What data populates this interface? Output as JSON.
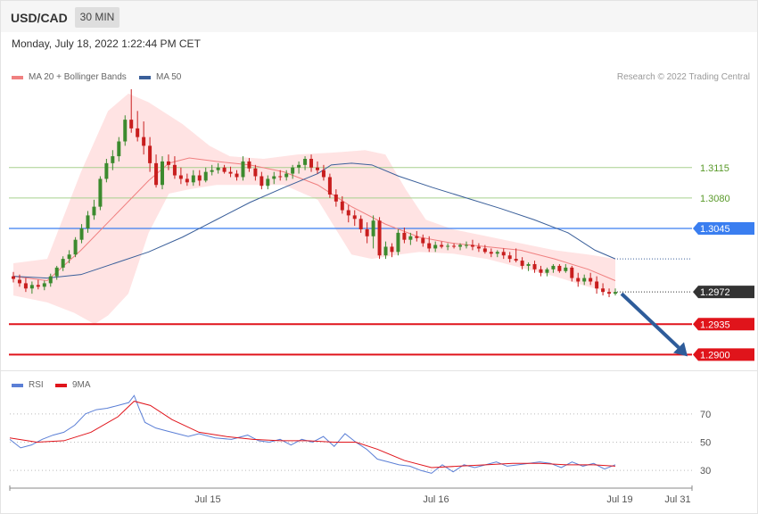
{
  "header": {
    "symbol": "USD/CAD",
    "timeframe": "30 MIN"
  },
  "date": "Monday, July 18, 2022 1:22:44 PM CET",
  "legend": {
    "ma20_label": "MA 20 + Bollinger Bands",
    "ma50_label": "MA 50",
    "copyright": "Research © 2022 Trading Central",
    "rsi_label": "RSI",
    "rsi_ma_label": "9MA"
  },
  "colors": {
    "ma20": "#f08080",
    "ma50": "#3a5f9a",
    "band_fill": "#ffe3e3",
    "bull": "#3c8a2e",
    "bear": "#c81e1e",
    "green_level": "#a8d08d",
    "blue_level": "#3a7ef0",
    "red_level": "#e0141b",
    "last_price": "#333333",
    "rsi": "#5b7fd6",
    "rsi_ma": "#e0141b",
    "arrow": "#2e5c9a"
  },
  "chart_data": {
    "type": "candlestick",
    "ylim": [
      1.2885,
      1.3205
    ],
    "last_price": 1.2972,
    "levels": [
      {
        "label": "1.3115",
        "value": 1.3115,
        "kind": "green"
      },
      {
        "label": "1.3080",
        "value": 1.308,
        "kind": "green"
      },
      {
        "label": "1.3045",
        "value": 1.3045,
        "kind": "blue"
      },
      {
        "label": "1.2972",
        "value": 1.2972,
        "kind": "last"
      },
      {
        "label": "1.2935",
        "value": 1.2935,
        "kind": "red"
      },
      {
        "label": "1.2900",
        "value": 1.29,
        "kind": "red"
      }
    ],
    "x_ticks": [
      "Jul 15",
      "Jul 16",
      "Jul 19",
      "Jul 31"
    ],
    "candles": [
      [
        1.299,
        1.2995,
        1.2983,
        1.2987
      ],
      [
        1.2986,
        1.2992,
        1.2978,
        1.2982
      ],
      [
        1.2982,
        1.2988,
        1.2972,
        1.2976
      ],
      [
        1.2976,
        1.2984,
        1.297,
        1.298
      ],
      [
        1.298,
        1.2986,
        1.2975,
        1.2978
      ],
      [
        1.2978,
        1.2985,
        1.2974,
        1.2982
      ],
      [
        1.2982,
        1.2993,
        1.2978,
        1.299
      ],
      [
        1.299,
        1.3002,
        1.2986,
        1.3
      ],
      [
        1.3,
        1.3013,
        1.2996,
        1.301
      ],
      [
        1.301,
        1.302,
        1.3005,
        1.3015
      ],
      [
        1.3015,
        1.3035,
        1.3012,
        1.3032
      ],
      [
        1.3032,
        1.305,
        1.3028,
        1.3045
      ],
      [
        1.3045,
        1.3065,
        1.304,
        1.306
      ],
      [
        1.306,
        1.3078,
        1.3055,
        1.307
      ],
      [
        1.307,
        1.3105,
        1.3066,
        1.3102
      ],
      [
        1.3102,
        1.3125,
        1.3098,
        1.312
      ],
      [
        1.312,
        1.3135,
        1.3112,
        1.3128
      ],
      [
        1.3128,
        1.315,
        1.3122,
        1.3145
      ],
      [
        1.3145,
        1.3175,
        1.314,
        1.317
      ],
      [
        1.317,
        1.3205,
        1.3155,
        1.316
      ],
      [
        1.316,
        1.318,
        1.3145,
        1.315
      ],
      [
        1.315,
        1.3168,
        1.313,
        1.314
      ],
      [
        1.314,
        1.315,
        1.311,
        1.312
      ],
      [
        1.312,
        1.313,
        1.3092,
        1.3095
      ],
      [
        1.3095,
        1.3128,
        1.309,
        1.3122
      ],
      [
        1.3122,
        1.313,
        1.3112,
        1.3118
      ],
      [
        1.3118,
        1.3128,
        1.3102,
        1.3106
      ],
      [
        1.3106,
        1.3115,
        1.3096,
        1.3102
      ],
      [
        1.3102,
        1.3108,
        1.3094,
        1.3098
      ],
      [
        1.3098,
        1.3112,
        1.3094,
        1.3106
      ],
      [
        1.3106,
        1.3112,
        1.3094,
        1.31
      ],
      [
        1.31,
        1.3115,
        1.3098,
        1.311
      ],
      [
        1.311,
        1.3118,
        1.3106,
        1.3112
      ],
      [
        1.3112,
        1.312,
        1.3108,
        1.3115
      ],
      [
        1.3115,
        1.3118,
        1.3108,
        1.311
      ],
      [
        1.311,
        1.3116,
        1.3104,
        1.3108
      ],
      [
        1.3108,
        1.3112,
        1.31,
        1.3104
      ],
      [
        1.3104,
        1.3128,
        1.31,
        1.3122
      ],
      [
        1.3122,
        1.3126,
        1.311,
        1.3114
      ],
      [
        1.3114,
        1.3118,
        1.31,
        1.3105
      ],
      [
        1.3105,
        1.311,
        1.309,
        1.3094
      ],
      [
        1.3094,
        1.3106,
        1.309,
        1.3102
      ],
      [
        1.3102,
        1.311,
        1.3096,
        1.3105
      ],
      [
        1.3105,
        1.3112,
        1.31,
        1.3104
      ],
      [
        1.3104,
        1.3112,
        1.31,
        1.3108
      ],
      [
        1.3108,
        1.3118,
        1.3102,
        1.3115
      ],
      [
        1.3115,
        1.3122,
        1.3108,
        1.3118
      ],
      [
        1.3118,
        1.3128,
        1.3112,
        1.3125
      ],
      [
        1.3125,
        1.313,
        1.311,
        1.3115
      ],
      [
        1.3115,
        1.3122,
        1.3108,
        1.3112
      ],
      [
        1.3112,
        1.3118,
        1.31,
        1.3104
      ],
      [
        1.3104,
        1.3108,
        1.308,
        1.3084
      ],
      [
        1.3084,
        1.309,
        1.307,
        1.3076
      ],
      [
        1.3076,
        1.3082,
        1.3062,
        1.3066
      ],
      [
        1.3066,
        1.3072,
        1.3052,
        1.306
      ],
      [
        1.306,
        1.3066,
        1.3048,
        1.3056
      ],
      [
        1.3056,
        1.306,
        1.304,
        1.3044
      ],
      [
        1.3044,
        1.3052,
        1.3028,
        1.3036
      ],
      [
        1.3036,
        1.306,
        1.3022,
        1.3054
      ],
      [
        1.3054,
        1.3058,
        1.301,
        1.3014
      ],
      [
        1.3014,
        1.303,
        1.301,
        1.3024
      ],
      [
        1.3024,
        1.3028,
        1.3012,
        1.3018
      ],
      [
        1.3018,
        1.3044,
        1.3014,
        1.304
      ],
      [
        1.304,
        1.3046,
        1.3028,
        1.3032
      ],
      [
        1.3032,
        1.304,
        1.3026,
        1.3036
      ],
      [
        1.3036,
        1.3042,
        1.303,
        1.3034
      ],
      [
        1.3034,
        1.3038,
        1.3024,
        1.3028
      ],
      [
        1.3028,
        1.3036,
        1.3018,
        1.3022
      ],
      [
        1.3022,
        1.303,
        1.3018,
        1.3026
      ],
      [
        1.3026,
        1.303,
        1.3022,
        1.3024
      ],
      [
        1.3024,
        1.3028,
        1.302,
        1.3025
      ],
      [
        1.3025,
        1.3028,
        1.3022,
        1.3024
      ],
      [
        1.3024,
        1.3028,
        1.302,
        1.3026
      ],
      [
        1.3026,
        1.303,
        1.3022,
        1.3026
      ],
      [
        1.3026,
        1.3032,
        1.302,
        1.3024
      ],
      [
        1.3024,
        1.3028,
        1.3018,
        1.3022
      ],
      [
        1.3022,
        1.3026,
        1.3016,
        1.3018
      ],
      [
        1.3018,
        1.3022,
        1.3012,
        1.3016
      ],
      [
        1.3016,
        1.302,
        1.3012,
        1.3018
      ],
      [
        1.3018,
        1.3022,
        1.301,
        1.3014
      ],
      [
        1.3014,
        1.3018,
        1.3006,
        1.301
      ],
      [
        1.301,
        1.3022,
        1.3006,
        1.3008
      ],
      [
        1.3008,
        1.3012,
        1.2998,
        1.3002
      ],
      [
        1.3002,
        1.3006,
        1.2996,
        1.3004
      ],
      [
        1.3004,
        1.3008,
        1.2994,
        1.2998
      ],
      [
        1.2998,
        1.3002,
        1.299,
        1.2994
      ],
      [
        1.2994,
        1.3,
        1.299,
        1.2998
      ],
      [
        1.2998,
        1.3004,
        1.2994,
        1.3002
      ],
      [
        1.3002,
        1.3004,
        1.2994,
        1.2996
      ],
      [
        1.2996,
        1.3004,
        1.2994,
        1.3
      ],
      [
        1.3,
        1.3002,
        1.2984,
        1.2988
      ],
      [
        1.2988,
        1.2994,
        1.2978,
        1.2984
      ],
      [
        1.2984,
        1.2992,
        1.298,
        1.2988
      ],
      [
        1.2988,
        1.2994,
        1.298,
        1.2984
      ],
      [
        1.2984,
        1.299,
        1.297,
        1.2976
      ],
      [
        1.2976,
        1.2982,
        1.2968,
        1.2972
      ],
      [
        1.2972,
        1.2976,
        1.2966,
        1.297
      ],
      [
        1.297,
        1.2976,
        1.2968,
        1.2972
      ]
    ],
    "ma20": [
      [
        0,
        1.299
      ],
      [
        10,
        1.2985
      ],
      [
        20,
        1.302
      ],
      [
        30,
        1.306
      ],
      [
        40,
        1.31
      ],
      [
        46,
        1.312
      ],
      [
        52,
        1.3126
      ],
      [
        60,
        1.3122
      ],
      [
        70,
        1.3118
      ],
      [
        80,
        1.311
      ],
      [
        90,
        1.3095
      ],
      [
        100,
        1.307
      ],
      [
        110,
        1.305
      ],
      [
        120,
        1.3035
      ],
      [
        130,
        1.3028
      ],
      [
        140,
        1.3024
      ],
      [
        150,
        1.302
      ],
      [
        160,
        1.301
      ],
      [
        170,
        1.2998
      ],
      [
        178,
        1.2985
      ]
    ],
    "bb_upper": [
      [
        0,
        1.3005
      ],
      [
        10,
        1.301
      ],
      [
        20,
        1.311
      ],
      [
        28,
        1.318
      ],
      [
        34,
        1.32
      ],
      [
        40,
        1.319
      ],
      [
        50,
        1.3165
      ],
      [
        58,
        1.314
      ],
      [
        64,
        1.3128
      ],
      [
        74,
        1.3125
      ],
      [
        84,
        1.313
      ],
      [
        94,
        1.3132
      ],
      [
        104,
        1.3135
      ],
      [
        110,
        1.313
      ],
      [
        116,
        1.309
      ],
      [
        122,
        1.3055
      ],
      [
        130,
        1.3044
      ],
      [
        140,
        1.3036
      ],
      [
        150,
        1.3028
      ],
      [
        160,
        1.302
      ],
      [
        170,
        1.3015
      ],
      [
        178,
        1.301
      ]
    ],
    "bb_lower": [
      [
        0,
        1.2968
      ],
      [
        10,
        1.296
      ],
      [
        18,
        1.2948
      ],
      [
        24,
        1.2935
      ],
      [
        28,
        1.2945
      ],
      [
        34,
        1.297
      ],
      [
        40,
        1.304
      ],
      [
        46,
        1.3085
      ],
      [
        52,
        1.309
      ],
      [
        60,
        1.3095
      ],
      [
        70,
        1.3095
      ],
      [
        80,
        1.3095
      ],
      [
        90,
        1.3078
      ],
      [
        96,
        1.304
      ],
      [
        100,
        1.3015
      ],
      [
        106,
        1.301
      ],
      [
        114,
        1.3015
      ],
      [
        120,
        1.3018
      ],
      [
        130,
        1.3016
      ],
      [
        140,
        1.301
      ],
      [
        150,
        1.3
      ],
      [
        160,
        1.299
      ],
      [
        170,
        1.2978
      ],
      [
        178,
        1.297
      ]
    ],
    "ma50": [
      [
        0,
        1.299
      ],
      [
        10,
        1.2988
      ],
      [
        20,
        1.2992
      ],
      [
        30,
        1.3005
      ],
      [
        40,
        1.3018
      ],
      [
        50,
        1.3035
      ],
      [
        60,
        1.3055
      ],
      [
        70,
        1.3075
      ],
      [
        80,
        1.3092
      ],
      [
        90,
        1.3108
      ],
      [
        94,
        1.3118
      ],
      [
        100,
        1.312
      ],
      [
        106,
        1.3118
      ],
      [
        114,
        1.3105
      ],
      [
        124,
        1.3092
      ],
      [
        134,
        1.308
      ],
      [
        144,
        1.3068
      ],
      [
        154,
        1.3055
      ],
      [
        164,
        1.304
      ],
      [
        172,
        1.302
      ],
      [
        178,
        1.301
      ]
    ],
    "rsi": {
      "ylim": [
        20,
        80
      ],
      "ticks": [
        70,
        50,
        30
      ],
      "rsi": [
        [
          0,
          52
        ],
        [
          4,
          46
        ],
        [
          8,
          48
        ],
        [
          12,
          52
        ],
        [
          16,
          55
        ],
        [
          20,
          57
        ],
        [
          24,
          62
        ],
        [
          28,
          70
        ],
        [
          32,
          73
        ],
        [
          36,
          74
        ],
        [
          40,
          76
        ],
        [
          44,
          78
        ],
        [
          46,
          83
        ],
        [
          48,
          73
        ],
        [
          50,
          64
        ],
        [
          54,
          60
        ],
        [
          58,
          58
        ],
        [
          62,
          56
        ],
        [
          66,
          54
        ],
        [
          70,
          56
        ],
        [
          76,
          53
        ],
        [
          82,
          52
        ],
        [
          88,
          55
        ],
        [
          92,
          51
        ],
        [
          96,
          50
        ],
        [
          100,
          52
        ],
        [
          104,
          48
        ],
        [
          108,
          52
        ],
        [
          112,
          50
        ],
        [
          116,
          54
        ],
        [
          120,
          47
        ],
        [
          124,
          56
        ],
        [
          128,
          50
        ],
        [
          132,
          45
        ],
        [
          136,
          38
        ],
        [
          140,
          36
        ],
        [
          144,
          34
        ],
        [
          148,
          33
        ],
        [
          152,
          30
        ],
        [
          156,
          28
        ],
        [
          160,
          34
        ],
        [
          164,
          29
        ],
        [
          168,
          34
        ],
        [
          172,
          32
        ],
        [
          176,
          34
        ],
        [
          180,
          36
        ],
        [
          184,
          33
        ],
        [
          188,
          34
        ],
        [
          192,
          35
        ],
        [
          196,
          36
        ],
        [
          200,
          35
        ],
        [
          204,
          32
        ],
        [
          208,
          36
        ],
        [
          212,
          33
        ],
        [
          216,
          35
        ],
        [
          220,
          31
        ],
        [
          224,
          34
        ]
      ],
      "ma": [
        [
          0,
          53
        ],
        [
          10,
          50
        ],
        [
          20,
          51
        ],
        [
          30,
          57
        ],
        [
          40,
          68
        ],
        [
          46,
          79
        ],
        [
          52,
          76
        ],
        [
          60,
          66
        ],
        [
          70,
          57
        ],
        [
          80,
          54
        ],
        [
          90,
          52
        ],
        [
          100,
          51
        ],
        [
          110,
          51
        ],
        [
          120,
          50
        ],
        [
          128,
          50
        ],
        [
          136,
          45
        ],
        [
          146,
          37
        ],
        [
          156,
          32
        ],
        [
          166,
          33
        ],
        [
          176,
          34
        ],
        [
          186,
          35
        ],
        [
          196,
          35
        ],
        [
          206,
          34
        ],
        [
          216,
          34
        ],
        [
          224,
          33
        ]
      ]
    }
  }
}
